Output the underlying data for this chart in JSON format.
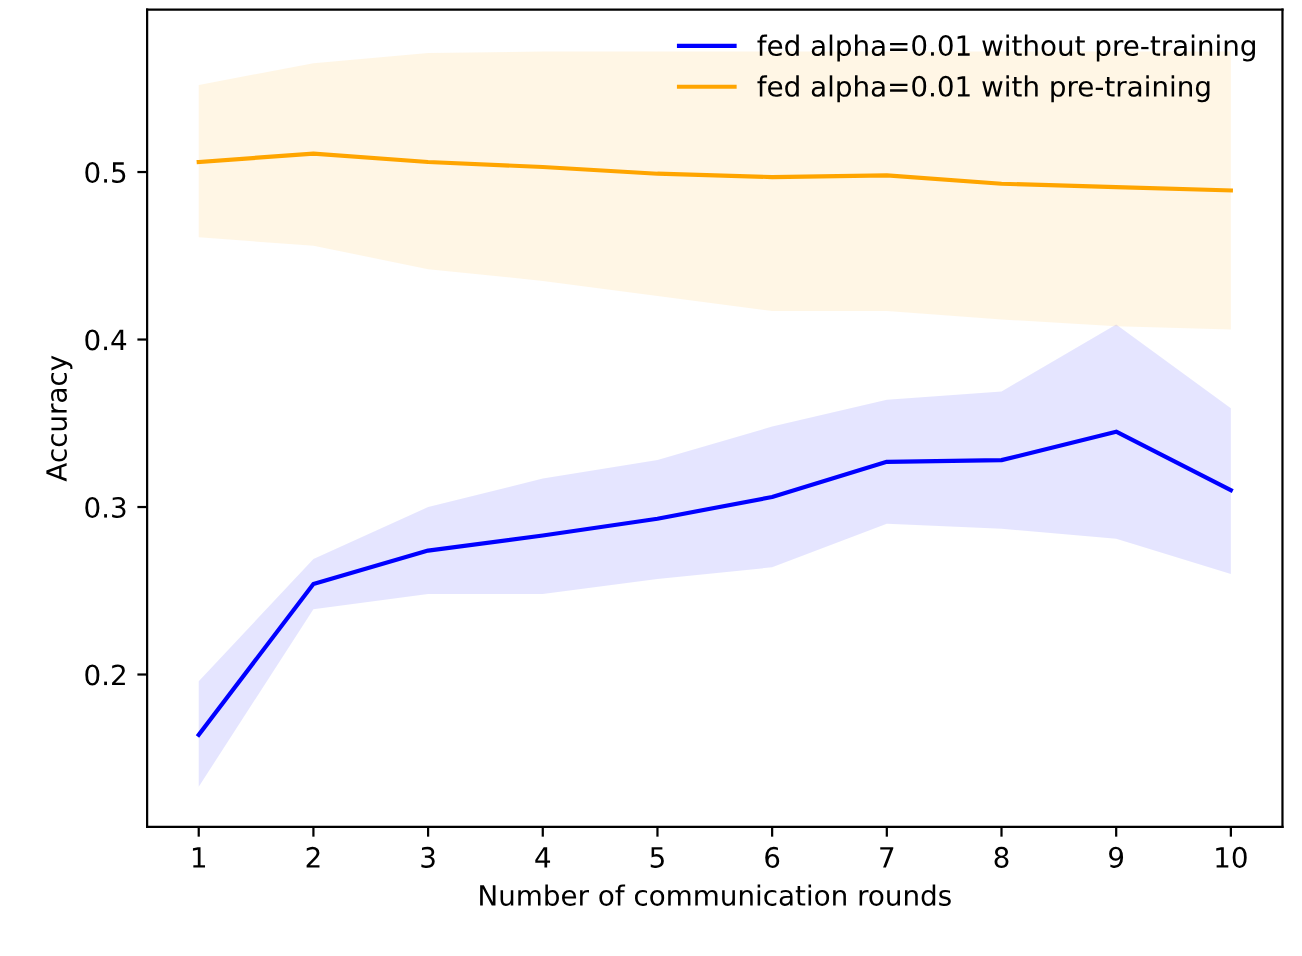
{
  "chart_data": {
    "type": "line",
    "xlabel": "Number of communication rounds",
    "ylabel": "Accuracy",
    "x": [
      1,
      2,
      3,
      4,
      5,
      6,
      7,
      8,
      9,
      10
    ],
    "series": [
      {
        "name": "fed alpha=0.01 without pre-training",
        "color": "#0000ff",
        "values": [
          0.164,
          0.254,
          0.274,
          0.283,
          0.293,
          0.306,
          0.327,
          0.328,
          0.345,
          0.31
        ],
        "lower": [
          0.133,
          0.239,
          0.248,
          0.248,
          0.257,
          0.264,
          0.29,
          0.287,
          0.281,
          0.26
        ],
        "upper": [
          0.196,
          0.269,
          0.3,
          0.317,
          0.328,
          0.348,
          0.364,
          0.369,
          0.409,
          0.359
        ]
      },
      {
        "name": "fed alpha=0.01 with pre-training",
        "color": "#ffa500",
        "values": [
          0.506,
          0.511,
          0.506,
          0.503,
          0.499,
          0.497,
          0.498,
          0.493,
          0.491,
          0.489
        ],
        "lower": [
          0.461,
          0.456,
          0.442,
          0.435,
          0.426,
          0.417,
          0.417,
          0.412,
          0.408,
          0.406
        ],
        "upper": [
          0.552,
          0.565,
          0.571,
          0.572,
          0.572,
          0.572,
          0.572,
          0.572,
          0.572,
          0.572
        ]
      }
    ],
    "xlim": [
      0.55,
      10.45
    ],
    "ylim": [
      0.109,
      0.597
    ],
    "xticks": [
      1,
      2,
      3,
      4,
      5,
      6,
      7,
      8,
      9,
      10
    ],
    "yticks": [
      0.2,
      0.3,
      0.4,
      0.5
    ],
    "legend": "top right",
    "grid": false
  }
}
